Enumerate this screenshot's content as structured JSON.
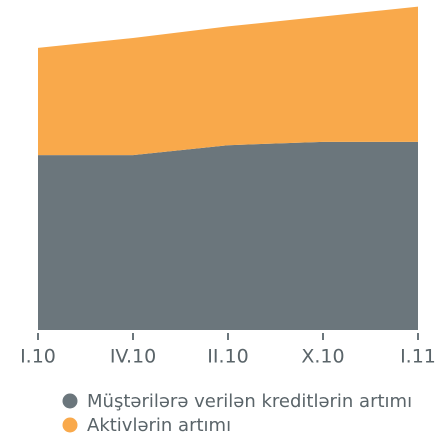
{
  "chart_data": {
    "type": "stacked-area",
    "categories": [
      "I.10",
      "IV.10",
      "II.10",
      "X.10",
      "I.11"
    ],
    "series": [
      {
        "name": "Müştərilərə verilən kreditlərin artımı",
        "color": "#6b767c",
        "values": [
          53,
          53,
          56,
          57,
          57
        ]
      },
      {
        "name": "Aktivlərin artımı",
        "color": "#f9a94b",
        "values": [
          32.5,
          35.5,
          36,
          38,
          41
        ]
      }
    ],
    "ylim": [
      0,
      100
    ]
  }
}
